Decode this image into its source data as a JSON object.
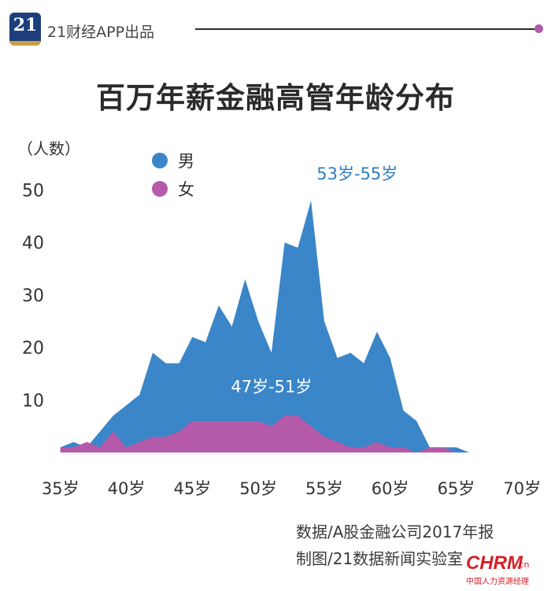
{
  "header": {
    "logo_text": "21",
    "brand": "21财经APP出品"
  },
  "source": {
    "line1": "数据/A股金融公司2017年报",
    "line2": "制图/21数据新闻实验室"
  },
  "watermark": {
    "brand": "CHRM",
    "suffix": ".cn",
    "tagline": "中国人力资源经理"
  },
  "colors": {
    "male": "#3a86c8",
    "female": "#b45aa8",
    "male_label": "#2f7dc2",
    "axis_text": "#333333"
  },
  "chart_data": {
    "type": "area",
    "title": "百万年薪金融高管年龄分布",
    "ylabel": "（人数）",
    "ylim": [
      0,
      55
    ],
    "y_ticks": [
      10,
      20,
      30,
      40,
      50
    ],
    "x_ticks": [
      "35岁",
      "40岁",
      "45岁",
      "50岁",
      "55岁",
      "60岁",
      "65岁",
      "70岁"
    ],
    "x_tick_values": [
      35,
      40,
      45,
      50,
      55,
      60,
      65,
      70
    ],
    "xlim": [
      34,
      71
    ],
    "legend_position": "top-left",
    "x": [
      35,
      36,
      37,
      38,
      39,
      40,
      41,
      42,
      43,
      44,
      45,
      46,
      47,
      48,
      49,
      50,
      51,
      52,
      53,
      54,
      55,
      56,
      57,
      58,
      59,
      60,
      61,
      62,
      63,
      64,
      65,
      66,
      67,
      68,
      69,
      70,
      71
    ],
    "series": [
      {
        "name": "男",
        "values": [
          1,
          2,
          1,
          4,
          7,
          9,
          11,
          19,
          17,
          17,
          22,
          21,
          28,
          24,
          33,
          25,
          19,
          40,
          39,
          48,
          25,
          18,
          19,
          17,
          23,
          18,
          8,
          6,
          1,
          1,
          1,
          0,
          0,
          0,
          0,
          0,
          0
        ]
      },
      {
        "name": "女",
        "values": [
          1,
          1,
          2,
          1,
          4,
          1,
          2,
          3,
          3,
          4,
          6,
          6,
          6,
          6,
          6,
          6,
          5,
          7,
          7,
          5,
          3,
          2,
          1,
          1,
          2,
          1,
          1,
          0,
          1,
          1,
          0,
          0,
          0,
          0,
          0,
          0,
          0
        ]
      }
    ],
    "annotations": [
      {
        "text": "53岁-55岁",
        "x": 57.5,
        "y": 52
      },
      {
        "text": "47岁-51岁",
        "x": 51,
        "y": 11.5
      }
    ]
  }
}
